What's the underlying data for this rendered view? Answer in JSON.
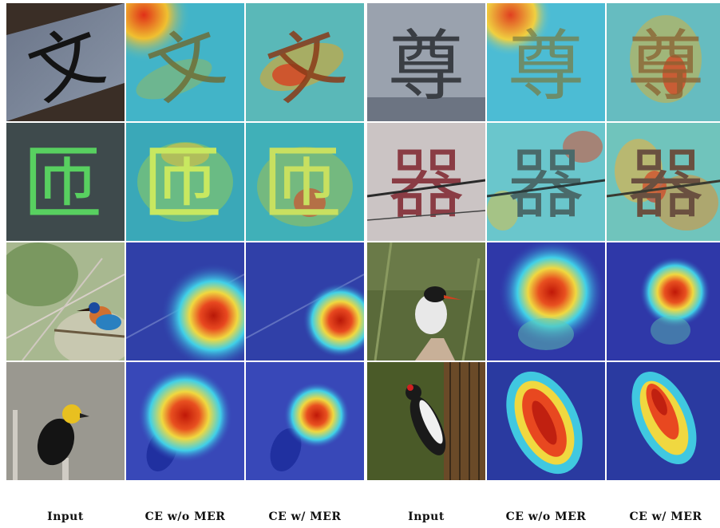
{
  "columns": [
    "Input",
    "CE w/o MER",
    "CE w/ MER",
    "Input",
    "CE w/o MER",
    "CE w/ MER"
  ],
  "rows": [
    {
      "left_char": "文",
      "right_char": "尊",
      "left_type": "character",
      "right_type": "character"
    },
    {
      "left_char": "匝",
      "right_char": "器",
      "left_type": "character",
      "right_type": "character"
    },
    {
      "left_subject": "kingfisher",
      "right_subject": "tern",
      "left_type": "bird",
      "right_type": "bird"
    },
    {
      "left_subject": "blackbird",
      "right_subject": "woodpecker",
      "left_type": "bird",
      "right_type": "bird"
    }
  ],
  "colors": {
    "heat_hot": "#e02010",
    "heat_warm": "#f0d020",
    "heat_cool": "#30c0e0",
    "heat_cold": "#2830b0"
  }
}
